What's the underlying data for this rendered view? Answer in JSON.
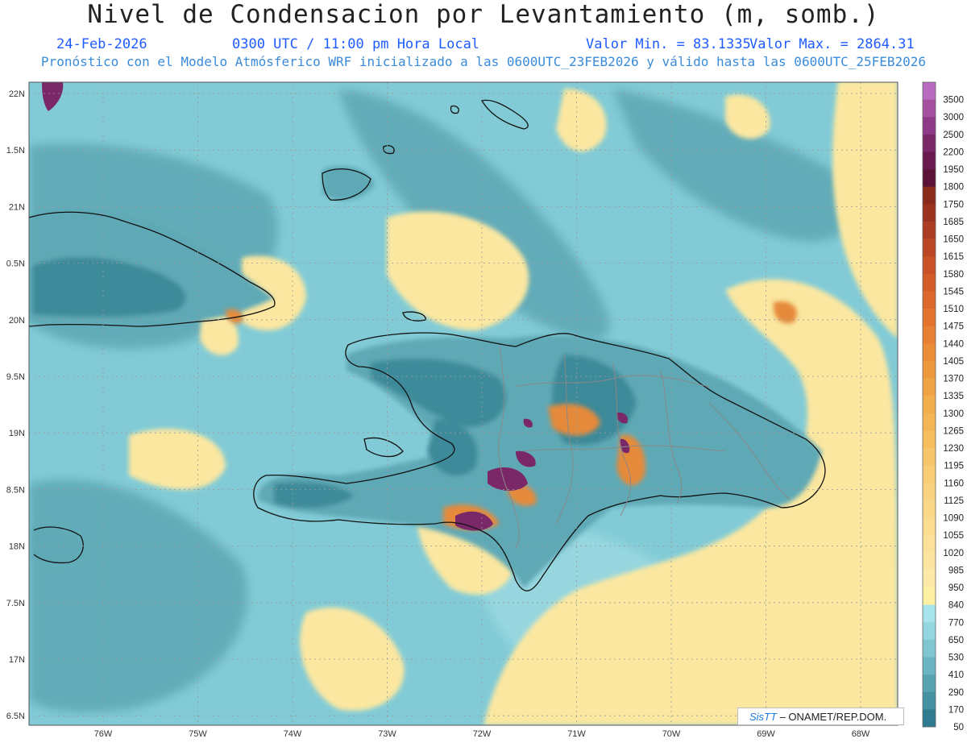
{
  "header": {
    "title": "Nivel de Condensacion por Levantamiento (m, somb.)",
    "date": "24-Feb-2026",
    "time": "0300 UTC / 11:00 pm Hora Local",
    "min_label": "Valor Min. = 83.1335",
    "max_label": "Valor Max. = 2864.31",
    "forecast_note": "Pronóstico con el Modelo Atmósferico WRF inicializado a las 0600UTC_23FEB2026 y válido hasta las  0600UTC_25FEB2026"
  },
  "axes": {
    "lat_labels": [
      "22N",
      "1.5N",
      "21N",
      "0.5N",
      "20N",
      "9.5N",
      "19N",
      "8.5N",
      "18N",
      "7.5N",
      "17N",
      "6.5N"
    ],
    "lon_labels": [
      "76W",
      "75W",
      "74W",
      "73W",
      "72W",
      "71W",
      "70W",
      "69W",
      "68W"
    ]
  },
  "colorbar": {
    "levels": [
      {
        "label": "3500",
        "color": "#b86bbf"
      },
      {
        "label": "3000",
        "color": "#a4509f"
      },
      {
        "label": "2500",
        "color": "#8f3a86"
      },
      {
        "label": "2200",
        "color": "#7b2868"
      },
      {
        "label": "1950",
        "color": "#6a1a4f"
      },
      {
        "label": "1800",
        "color": "#5c1236"
      },
      {
        "label": "1750",
        "color": "#8a2a1c"
      },
      {
        "label": "1685",
        "color": "#9c3320"
      },
      {
        "label": "1650",
        "color": "#ad3d22"
      },
      {
        "label": "1615",
        "color": "#bc4724"
      },
      {
        "label": "1580",
        "color": "#c95226"
      },
      {
        "label": "1545",
        "color": "#d35d28"
      },
      {
        "label": "1510",
        "color": "#dc682b"
      },
      {
        "label": "1475",
        "color": "#e2742e"
      },
      {
        "label": "1440",
        "color": "#e78032"
      },
      {
        "label": "1405",
        "color": "#eb8c37"
      },
      {
        "label": "1370",
        "color": "#ee983d"
      },
      {
        "label": "1335",
        "color": "#f0a344"
      },
      {
        "label": "1300",
        "color": "#f2ad4c"
      },
      {
        "label": "1265",
        "color": "#f4b655"
      },
      {
        "label": "1230",
        "color": "#f5be5f"
      },
      {
        "label": "1195",
        "color": "#f7c66a"
      },
      {
        "label": "1160",
        "color": "#f8cd75"
      },
      {
        "label": "1125",
        "color": "#f9d37f"
      },
      {
        "label": "1090",
        "color": "#fad889"
      },
      {
        "label": "1055",
        "color": "#fbdd92"
      },
      {
        "label": "1020",
        "color": "#fce19a"
      },
      {
        "label": "985",
        "color": "#fce5a1"
      },
      {
        "label": "950",
        "color": "#fde9a8"
      },
      {
        "label": "840",
        "color": "#fdf0a3"
      },
      {
        "label": "770",
        "color": "#a6e3ea"
      },
      {
        "label": "650",
        "color": "#93d6df"
      },
      {
        "label": "530",
        "color": "#7fc6d1"
      },
      {
        "label": "410",
        "color": "#6bb5c2"
      },
      {
        "label": "290",
        "color": "#57a3b2"
      },
      {
        "label": "170",
        "color": "#4592a3"
      },
      {
        "label": "50",
        "color": "#2f7b90"
      }
    ]
  },
  "colors": {
    "sea_base": "#82cbd6",
    "land_mid": "#5ea9b6",
    "land_dark": "#3e8a9a",
    "dry": "#fbe7a0",
    "hot": "#e58a3a",
    "extreme": "#7b2868"
  },
  "credit": {
    "logo": "SisTT",
    "text": " – ONAMET/REP.DOM."
  }
}
